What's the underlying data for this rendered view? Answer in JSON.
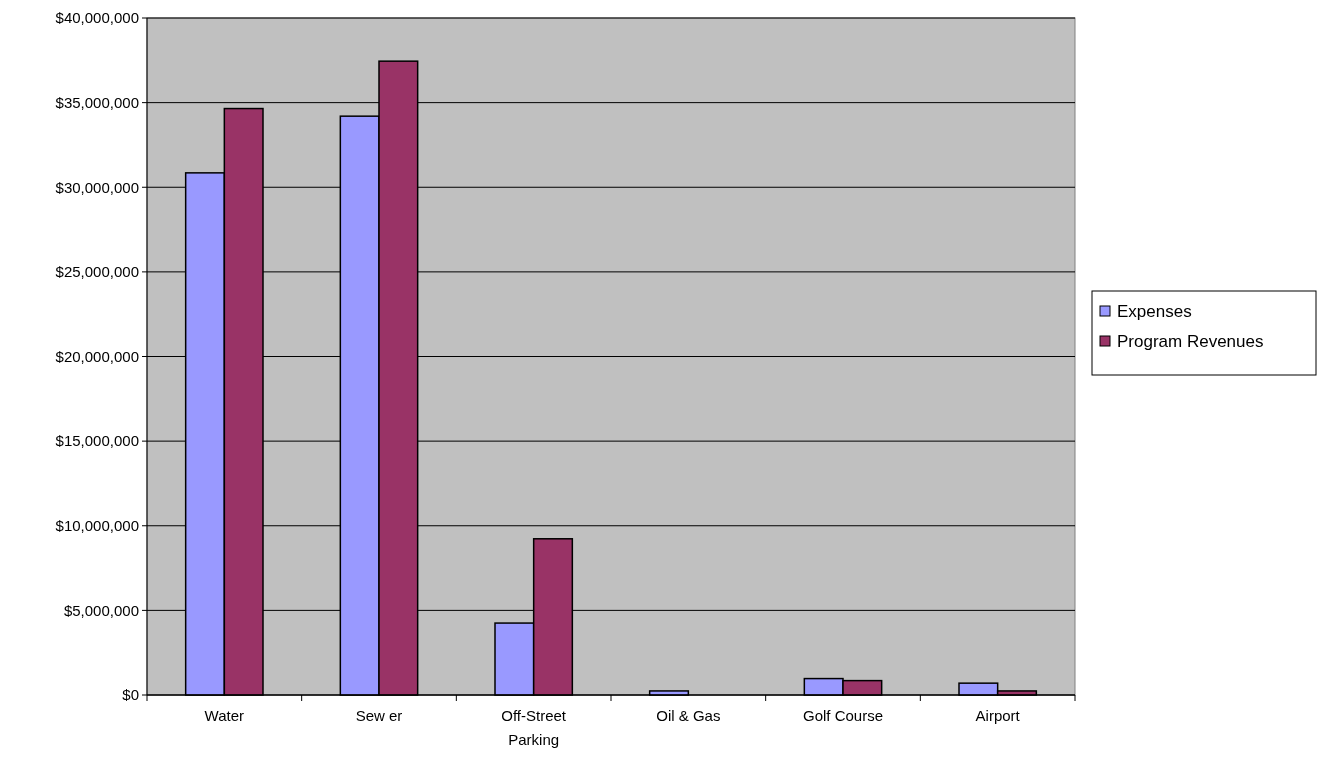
{
  "chart_data": {
    "type": "bar",
    "categories": [
      "Water",
      "Sew er",
      "Off-Street Parking",
      "Oil & Gas",
      "Golf Course",
      "Airport"
    ],
    "series": [
      {
        "name": "Expenses",
        "color": "#9999ff",
        "values": [
          30850000,
          34200000,
          4250000,
          240000,
          970000,
          700000
        ]
      },
      {
        "name": "Program Revenues",
        "color": "#993366",
        "values": [
          34650000,
          37450000,
          9230000,
          0,
          850000,
          240000
        ]
      }
    ],
    "ylim": [
      0,
      40000000
    ],
    "yticks": [
      {
        "value": 0,
        "label": "$0"
      },
      {
        "value": 5000000,
        "label": "$5,000,000"
      },
      {
        "value": 10000000,
        "label": "$10,000,000"
      },
      {
        "value": 15000000,
        "label": "$15,000,000"
      },
      {
        "value": 20000000,
        "label": "$20,000,000"
      },
      {
        "value": 25000000,
        "label": "$25,000,000"
      },
      {
        "value": 30000000,
        "label": "$30,000,000"
      },
      {
        "value": 35000000,
        "label": "$35,000,000"
      },
      {
        "value": 40000000,
        "label": "$40,000,000"
      }
    ],
    "grid": "y",
    "legend": "right"
  }
}
